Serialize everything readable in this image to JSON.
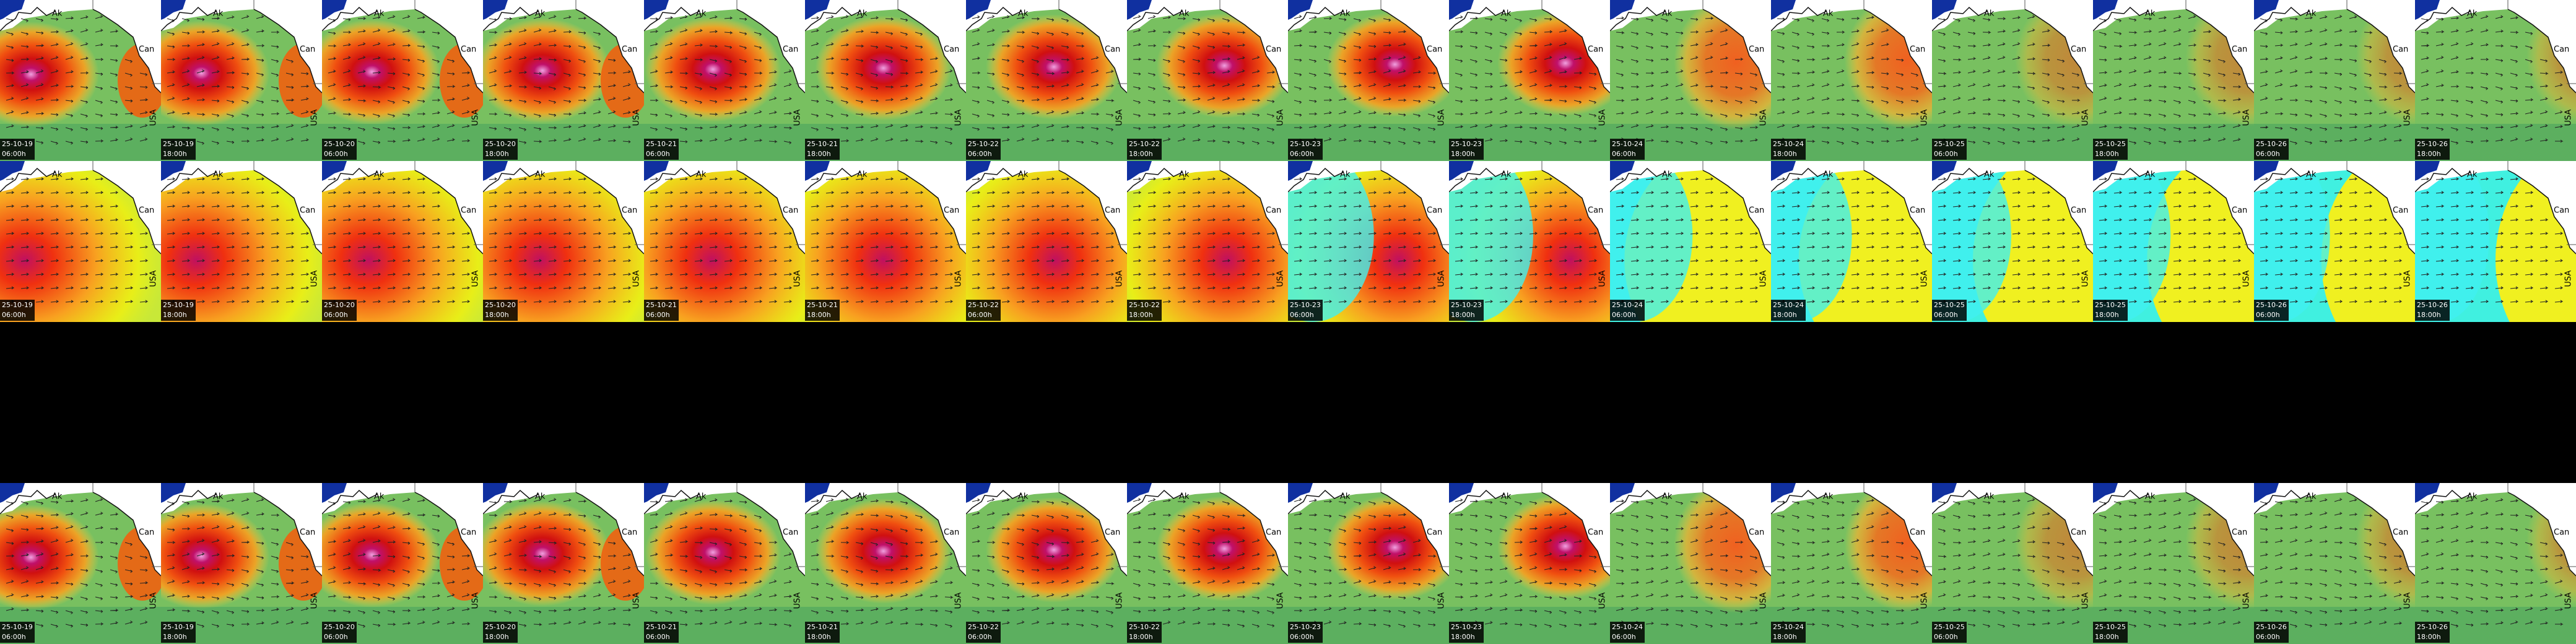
{
  "map_labels": {
    "ak": "Ak",
    "can": "Can",
    "usa": "USA"
  },
  "rows": [
    {
      "tiles": [
        {
          "date": "25-10-19",
          "time": "06:00h"
        },
        {
          "date": "25-10-19",
          "time": "18:00h"
        },
        {
          "date": "25-10-20",
          "time": "06:00h"
        },
        {
          "date": "25-10-20",
          "time": "18:00h"
        },
        {
          "date": "25-10-21",
          "time": "06:00h"
        },
        {
          "date": "25-10-21",
          "time": "18:00h"
        },
        {
          "date": "25-10-22",
          "time": "06:00h"
        },
        {
          "date": "25-10-22",
          "time": "18:00h"
        },
        {
          "date": "25-10-23",
          "time": "06:00h"
        },
        {
          "date": "25-10-23",
          "time": "18:00h"
        },
        {
          "date": "25-10-24",
          "time": "06:00h"
        },
        {
          "date": "25-10-24",
          "time": "18:00h"
        },
        {
          "date": "25-10-25",
          "time": "06:00h"
        },
        {
          "date": "25-10-25",
          "time": "18:00h"
        },
        {
          "date": "25-10-26",
          "time": "06:00h"
        },
        {
          "date": "25-10-26",
          "time": "18:00h"
        }
      ]
    },
    {
      "tiles": [
        {
          "date": "25-10-19",
          "time": "06:00h"
        },
        {
          "date": "25-10-19",
          "time": "18:00h"
        },
        {
          "date": "25-10-20",
          "time": "06:00h"
        },
        {
          "date": "25-10-20",
          "time": "18:00h"
        },
        {
          "date": "25-10-21",
          "time": "06:00h"
        },
        {
          "date": "25-10-21",
          "time": "18:00h"
        },
        {
          "date": "25-10-22",
          "time": "06:00h"
        },
        {
          "date": "25-10-22",
          "time": "18:00h"
        },
        {
          "date": "25-10-23",
          "time": "06:00h"
        },
        {
          "date": "25-10-23",
          "time": "18:00h"
        },
        {
          "date": "25-10-24",
          "time": "06:00h"
        },
        {
          "date": "25-10-24",
          "time": "18:00h"
        },
        {
          "date": "25-10-25",
          "time": "06:00h"
        },
        {
          "date": "25-10-25",
          "time": "18:00h"
        },
        {
          "date": "25-10-26",
          "time": "06:00h"
        },
        {
          "date": "25-10-26",
          "time": "18:00h"
        }
      ]
    },
    {
      "tiles": [
        {
          "date": "25-10-19",
          "time": "06:00h"
        },
        {
          "date": "25-10-19",
          "time": "18:00h"
        },
        {
          "date": "25-10-20",
          "time": "06:00h"
        },
        {
          "date": "25-10-20",
          "time": "18:00h"
        },
        {
          "date": "25-10-21",
          "time": "06:00h"
        },
        {
          "date": "25-10-21",
          "time": "18:00h"
        },
        {
          "date": "25-10-22",
          "time": "06:00h"
        },
        {
          "date": "25-10-22",
          "time": "18:00h"
        },
        {
          "date": "25-10-23",
          "time": "06:00h"
        },
        {
          "date": "25-10-23",
          "time": "18:00h"
        },
        {
          "date": "25-10-24",
          "time": "06:00h"
        },
        {
          "date": "25-10-24",
          "time": "18:00h"
        },
        {
          "date": "25-10-25",
          "time": "06:00h"
        },
        {
          "date": "25-10-25",
          "time": "18:00h"
        },
        {
          "date": "25-10-26",
          "time": "06:00h"
        },
        {
          "date": "25-10-26",
          "time": "18:00h"
        }
      ]
    }
  ]
}
